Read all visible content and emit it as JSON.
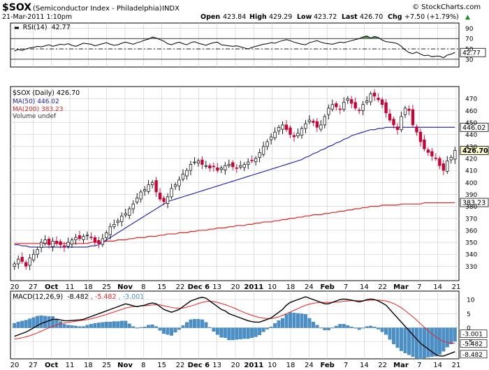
{
  "header": {
    "symbol": "$SOX",
    "name": "(Semiconductor Index - Philadelphia)",
    "exchange": "INDX",
    "date": "21-Mar-2011 1:10pm",
    "copyright": "© StockCharts.com",
    "open_label": "Open",
    "open": "423.84",
    "high_label": "High",
    "high": "429.29",
    "low_label": "Low",
    "low": "423.72",
    "last_label": "Last",
    "last": "426.70",
    "chg_label": "Chg",
    "chg": "+7.50 (+1.79%)",
    "chg_arrow": "▲"
  },
  "colors": {
    "up": "#ffffff",
    "down": "#cc0033",
    "ma50": "#1a1aaa",
    "ma200": "#dd2222",
    "rsi_fill": "#5a8a5a",
    "hist": "#4a90c8",
    "signal": "#ee2222",
    "macd": "#000000",
    "grid": "#cccccc",
    "axis": "#000000"
  },
  "chart_data": [
    {
      "type": "line",
      "title": "RSI(14) 42.77",
      "name": "RSI(14)",
      "last_value": "42.77",
      "ylim": [
        15,
        100
      ],
      "yticks": [
        30,
        50,
        70,
        90
      ],
      "ytick_labels": [
        "30",
        "50",
        "70",
        "90"
      ],
      "reference_lines": [
        70,
        50,
        30
      ],
      "values": [
        46,
        49,
        47,
        50,
        52,
        53,
        55,
        54,
        56,
        58,
        55,
        57,
        59,
        58,
        60,
        57,
        55,
        58,
        61,
        60,
        59,
        56,
        58,
        60,
        62,
        59,
        57,
        58,
        61,
        63,
        61,
        59,
        62,
        64,
        67,
        69,
        73,
        71,
        68,
        65,
        60,
        58,
        61,
        63,
        60,
        58,
        62,
        64,
        61,
        59,
        57,
        60,
        62,
        63,
        58,
        57,
        56,
        55,
        56,
        54,
        52,
        50,
        53,
        55,
        57,
        59,
        60,
        62,
        61,
        64,
        66,
        68,
        66,
        63,
        61,
        59,
        58,
        62,
        64,
        66,
        63,
        61,
        60,
        59,
        61,
        63,
        62,
        64,
        66,
        68,
        70,
        73,
        75,
        71,
        74,
        72,
        67,
        64,
        63,
        62,
        60,
        55,
        48,
        43,
        41,
        44,
        40,
        37,
        38,
        35,
        36,
        36,
        33,
        38,
        40,
        43
      ]
    },
    {
      "type": "candlestick",
      "title": "$SOX (Daily) 426.70",
      "ylim": [
        318,
        480
      ],
      "yticks": [
        330,
        340,
        350,
        360,
        370,
        380,
        390,
        400,
        410,
        420,
        430,
        440,
        450,
        460,
        470
      ],
      "ytick_labels": [
        "330",
        "340",
        "350",
        "360",
        "370",
        "380",
        "390",
        "400",
        "410",
        "420",
        "430",
        "440",
        "450",
        "460",
        "470"
      ],
      "x_tick_labels": [
        "20",
        "27",
        "Oct",
        "11",
        "18",
        "25",
        "Nov",
        "8",
        "15",
        "22",
        "Dec 6",
        "13",
        "20",
        "2011",
        "10",
        "18",
        "24",
        "Feb",
        "7",
        "14",
        "22",
        "Mar",
        "7",
        "14",
        "21"
      ],
      "legend": [
        {
          "label": "$SOX (Daily) 426.70",
          "marker": "candle"
        },
        {
          "label": "MA(50) 446.02",
          "color": "#1a1aaa"
        },
        {
          "label": "MA(200) 383.23",
          "color": "#dd2222"
        },
        {
          "label": "Volume undef",
          "marker": "bars"
        }
      ],
      "price_labels": [
        "446.02",
        "426.70",
        "383.23"
      ],
      "series": [
        {
          "name": "Close",
          "values": [
            332,
            336,
            334,
            330,
            337,
            340,
            344,
            350,
            352,
            348,
            351,
            349,
            348,
            346,
            350,
            352,
            354,
            353,
            355,
            356,
            354,
            350,
            349,
            353,
            358,
            363,
            365,
            368,
            372,
            374,
            378,
            382,
            387,
            392,
            394,
            398,
            400,
            392,
            386,
            384,
            388,
            395,
            398,
            402,
            407,
            410,
            415,
            417,
            418,
            415,
            414,
            412,
            413,
            410,
            412,
            414,
            415,
            413,
            412,
            414,
            415,
            417,
            418,
            420,
            425,
            430,
            434,
            438,
            442,
            446,
            448,
            444,
            440,
            438,
            441,
            445,
            449,
            452,
            450,
            446,
            448,
            455,
            462,
            465,
            463,
            461,
            467,
            470,
            466,
            462,
            460,
            465,
            468,
            474,
            472,
            469,
            465,
            458,
            452,
            448,
            444,
            455,
            462,
            460,
            448,
            442,
            434,
            428,
            425,
            422,
            420,
            414,
            410,
            418,
            421,
            426.7
          ]
        },
        {
          "name": "MA(50)",
          "values": [
            348,
            348,
            347,
            347,
            346,
            346,
            346,
            346,
            346,
            346,
            346,
            346,
            346,
            346,
            346,
            346,
            346,
            346,
            346,
            346,
            347,
            347,
            348,
            350,
            352,
            354,
            356,
            358,
            360,
            362,
            364,
            366,
            368,
            370,
            372,
            374,
            376,
            378,
            380,
            382,
            384,
            385,
            386,
            387,
            388,
            389,
            390,
            391,
            392,
            393,
            394,
            395,
            396,
            397,
            398,
            399,
            400,
            401,
            402,
            403,
            404,
            405,
            406,
            407,
            408,
            409,
            410,
            411,
            412,
            413,
            414,
            415,
            416,
            417,
            418,
            419,
            421,
            422,
            424,
            425,
            427,
            428,
            430,
            431,
            433,
            434,
            436,
            437,
            439,
            440,
            441,
            442,
            443,
            444,
            444,
            445,
            445,
            446,
            446,
            446,
            446,
            446,
            446,
            446,
            446,
            446,
            446,
            446,
            446,
            446,
            446,
            446,
            446,
            446,
            446,
            446.02
          ]
        },
        {
          "name": "MA(200)",
          "values": [
            349,
            349,
            349,
            349,
            349,
            349,
            349,
            349,
            349,
            349,
            349,
            349,
            349,
            349,
            349,
            349,
            349,
            349,
            349,
            349,
            350,
            350,
            350,
            350,
            351,
            351,
            351,
            352,
            352,
            352,
            353,
            353,
            354,
            354,
            354,
            355,
            355,
            355,
            356,
            356,
            357,
            357,
            357,
            358,
            358,
            358,
            359,
            359,
            360,
            360,
            360,
            361,
            361,
            362,
            362,
            362,
            363,
            363,
            364,
            364,
            364,
            365,
            365,
            366,
            366,
            367,
            367,
            367,
            368,
            368,
            369,
            369,
            370,
            370,
            371,
            371,
            372,
            372,
            373,
            373,
            373,
            374,
            374,
            375,
            375,
            376,
            376,
            377,
            377,
            378,
            378,
            379,
            379,
            380,
            380,
            380,
            381,
            381,
            381,
            381,
            381,
            382,
            382,
            382,
            382,
            382,
            382,
            383,
            383,
            383,
            383,
            383,
            383,
            383,
            383,
            383.23
          ]
        }
      ]
    },
    {
      "type": "line",
      "title": "MACD(12,26,9) -8.482, -5.482, -3.001",
      "label_name": "MACD(12,26,9)",
      "label_macd": "-8.482",
      "label_signal": "-5.482",
      "label_hist": "-3.001",
      "ylim": [
        -11,
        13
      ],
      "yticks": [
        -5,
        0,
        5,
        10
      ],
      "ytick_labels": [
        "-5",
        "0",
        "5",
        "10"
      ],
      "value_labels": [
        "-3.001",
        "-5.482",
        "-8.482"
      ],
      "x_tick_labels": [
        "20",
        "27",
        "Oct",
        "11",
        "18",
        "25",
        "Nov",
        "8",
        "15",
        "22",
        "Dec 6",
        "13",
        "20",
        "2011",
        "10",
        "18",
        "24",
        "Feb",
        "7",
        "14",
        "22",
        "Mar",
        "7",
        "14",
        "21"
      ],
      "series": [
        {
          "name": "MACD",
          "values": [
            -3.0,
            -2.5,
            -2.0,
            -1.5,
            -0.8,
            0.0,
            0.8,
            1.5,
            2.0,
            2.5,
            3.0,
            3.0,
            2.8,
            2.5,
            2.5,
            2.6,
            2.7,
            2.8,
            3.0,
            3.5,
            4.0,
            4.5,
            5.0,
            5.5,
            6.0,
            6.5,
            7.0,
            7.5,
            8.0,
            8.5,
            8.2,
            7.8,
            7.5,
            7.8,
            8.0,
            8.5,
            8.8,
            8.5,
            7.5,
            6.5,
            6.0,
            5.5,
            6.0,
            6.5,
            7.5,
            8.5,
            9.5,
            10.0,
            10.5,
            10.8,
            10.5,
            9.5,
            8.5,
            7.5,
            6.5,
            6.0,
            5.0,
            4.5,
            4.0,
            3.5,
            3.0,
            2.5,
            2.2,
            2.0,
            2.0,
            2.5,
            3.0,
            3.5,
            4.5,
            5.5,
            6.5,
            8.0,
            9.0,
            9.5,
            10.0,
            10.5,
            11.0,
            10.5,
            10.0,
            9.5,
            9.0,
            8.5,
            8.5,
            9.0,
            9.5,
            10.0,
            10.2,
            10.0,
            9.8,
            9.5,
            9.2,
            9.5,
            10.0,
            10.2,
            10.0,
            9.5,
            8.8,
            8.0,
            6.5,
            5.0,
            3.5,
            2.0,
            0.5,
            -1.0,
            -2.5,
            -4.0,
            -5.5,
            -6.5,
            -7.5,
            -8.5,
            -9.5,
            -10.0,
            -10.0,
            -9.5,
            -9.0,
            -8.482
          ]
        },
        {
          "name": "Signal",
          "values": [
            -4.0,
            -3.8,
            -3.5,
            -3.2,
            -2.8,
            -2.3,
            -1.8,
            -1.2,
            -0.6,
            0.0,
            0.5,
            1.0,
            1.4,
            1.7,
            1.9,
            2.1,
            2.3,
            2.5,
            2.7,
            2.9,
            3.2,
            3.5,
            3.9,
            4.3,
            4.7,
            5.2,
            5.6,
            6.1,
            6.5,
            7.0,
            7.3,
            7.5,
            7.6,
            7.7,
            7.8,
            7.9,
            8.1,
            8.2,
            8.1,
            7.8,
            7.5,
            7.2,
            7.0,
            6.9,
            7.0,
            7.3,
            7.7,
            8.1,
            8.6,
            9.0,
            9.3,
            9.4,
            9.3,
            9.0,
            8.6,
            8.2,
            7.7,
            7.2,
            6.6,
            6.0,
            5.4,
            4.9,
            4.4,
            4.0,
            3.6,
            3.4,
            3.3,
            3.3,
            3.5,
            3.9,
            4.4,
            5.0,
            5.6,
            6.2,
            6.8,
            7.4,
            8.0,
            8.4,
            8.7,
            8.9,
            9.0,
            9.0,
            9.0,
            9.0,
            9.1,
            9.2,
            9.4,
            9.5,
            9.6,
            9.6,
            9.6,
            9.6,
            9.7,
            9.8,
            9.8,
            9.8,
            9.7,
            9.5,
            9.1,
            8.6,
            7.9,
            7.1,
            6.1,
            5.0,
            3.9,
            2.7,
            1.4,
            0.2,
            -1.0,
            -2.1,
            -3.2,
            -4.1,
            -4.8,
            -5.2,
            -5.4,
            -5.482
          ]
        }
      ]
    }
  ]
}
